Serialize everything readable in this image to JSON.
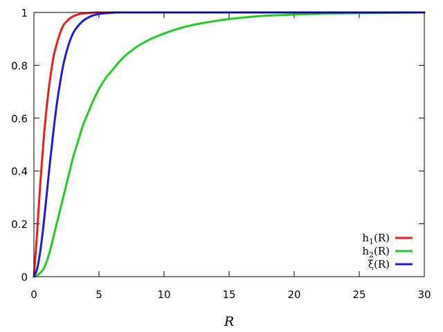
{
  "chart_data": {
    "type": "line",
    "title": "",
    "xlabel": "R",
    "ylabel": "",
    "xlim": [
      0,
      30
    ],
    "ylim": [
      0,
      1
    ],
    "grid": false,
    "legend_position": "bottom-right",
    "x_ticks": [
      "0",
      "5",
      "10",
      "15",
      "20",
      "25",
      "30"
    ],
    "y_ticks": [
      "0",
      "0.2",
      "0.4",
      "0.6",
      "0.8",
      "1"
    ],
    "x": [
      0,
      0.25,
      0.5,
      0.75,
      1,
      1.25,
      1.5,
      1.75,
      2,
      2.25,
      2.5,
      2.75,
      3,
      3.25,
      3.5,
      3.75,
      4,
      4.5,
      5,
      5.5,
      6,
      6.5,
      7,
      7.5,
      8,
      9,
      10,
      11,
      12,
      13,
      14,
      15,
      16,
      17,
      18,
      19,
      20,
      22,
      24,
      26,
      28,
      30
    ],
    "series": [
      {
        "name": "h1(R)",
        "legend": {
          "base": "h",
          "sub": "1",
          "rest": "(R)"
        },
        "color": "#ee1c1c",
        "values": [
          0,
          0.17,
          0.36,
          0.52,
          0.65,
          0.75,
          0.83,
          0.88,
          0.92,
          0.95,
          0.965,
          0.977,
          0.985,
          0.99,
          0.994,
          0.996,
          0.997,
          0.999,
          1,
          1,
          1,
          1,
          1,
          1,
          1,
          1,
          1,
          1,
          1,
          1,
          1,
          1,
          1,
          1,
          1,
          1,
          1,
          1,
          1,
          1,
          1,
          1
        ]
      },
      {
        "name": "h2(R)",
        "legend": {
          "base": "h",
          "sub": "2",
          "rest": "(R)"
        },
        "color": "#22cc22",
        "values": [
          0,
          0.005,
          0.015,
          0.03,
          0.06,
          0.1,
          0.15,
          0.2,
          0.25,
          0.3,
          0.35,
          0.4,
          0.45,
          0.49,
          0.53,
          0.57,
          0.6,
          0.66,
          0.71,
          0.75,
          0.78,
          0.81,
          0.835,
          0.855,
          0.873,
          0.9,
          0.92,
          0.937,
          0.95,
          0.96,
          0.968,
          0.975,
          0.98,
          0.985,
          0.988,
          0.99,
          0.992,
          0.995,
          0.997,
          0.998,
          0.999,
          1
        ]
      },
      {
        "name": "ξ(R)",
        "legend": {
          "base": "ξ",
          "sub": "",
          "rest": "(R)"
        },
        "color": "#1c1cdd",
        "values": [
          0,
          0.03,
          0.1,
          0.2,
          0.32,
          0.44,
          0.55,
          0.65,
          0.73,
          0.8,
          0.85,
          0.89,
          0.92,
          0.94,
          0.955,
          0.967,
          0.976,
          0.988,
          0.994,
          0.997,
          0.999,
          1,
          1,
          1,
          1,
          1,
          1,
          1,
          1,
          1,
          1,
          1,
          1,
          1,
          1,
          1,
          1,
          1,
          1,
          1,
          1,
          1
        ]
      }
    ]
  }
}
